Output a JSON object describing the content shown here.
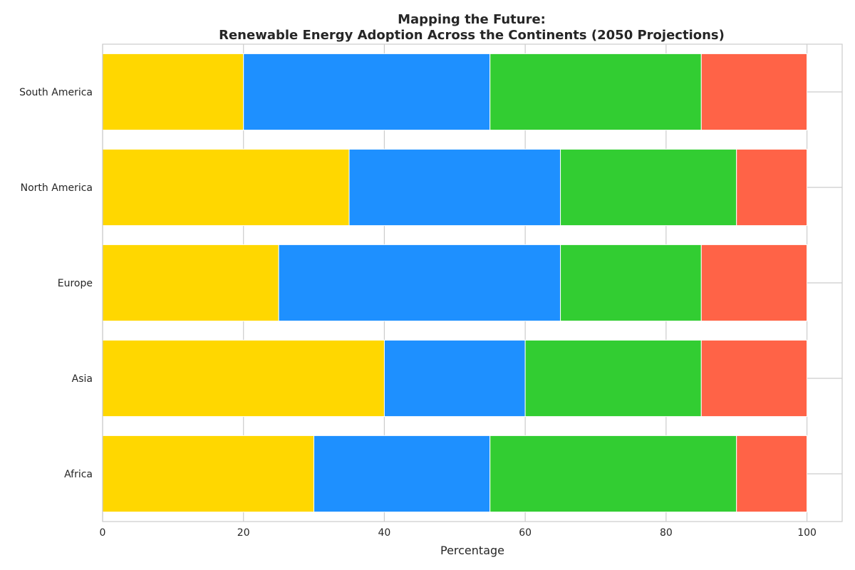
{
  "chart_data": {
    "type": "bar",
    "orientation": "horizontal",
    "stacked": true,
    "title_line1": "Mapping the Future:",
    "title_line2": "Renewable Energy Adoption Across the Continents (2050 Projections)",
    "xlabel": "Percentage",
    "ylabel": "",
    "xlim": [
      0,
      105
    ],
    "xticks": [
      0,
      20,
      40,
      60,
      80,
      100
    ],
    "grid": true,
    "categories": [
      "Africa",
      "Asia",
      "Europe",
      "North America",
      "South America"
    ],
    "series": [
      {
        "color": "#FFD700",
        "values": [
          30,
          40,
          25,
          35,
          20
        ]
      },
      {
        "color": "#1E90FF",
        "values": [
          25,
          20,
          40,
          30,
          35
        ]
      },
      {
        "color": "#32CD32",
        "values": [
          35,
          25,
          20,
          25,
          30
        ]
      },
      {
        "color": "#FF6347",
        "values": [
          10,
          15,
          15,
          10,
          15
        ]
      }
    ]
  }
}
